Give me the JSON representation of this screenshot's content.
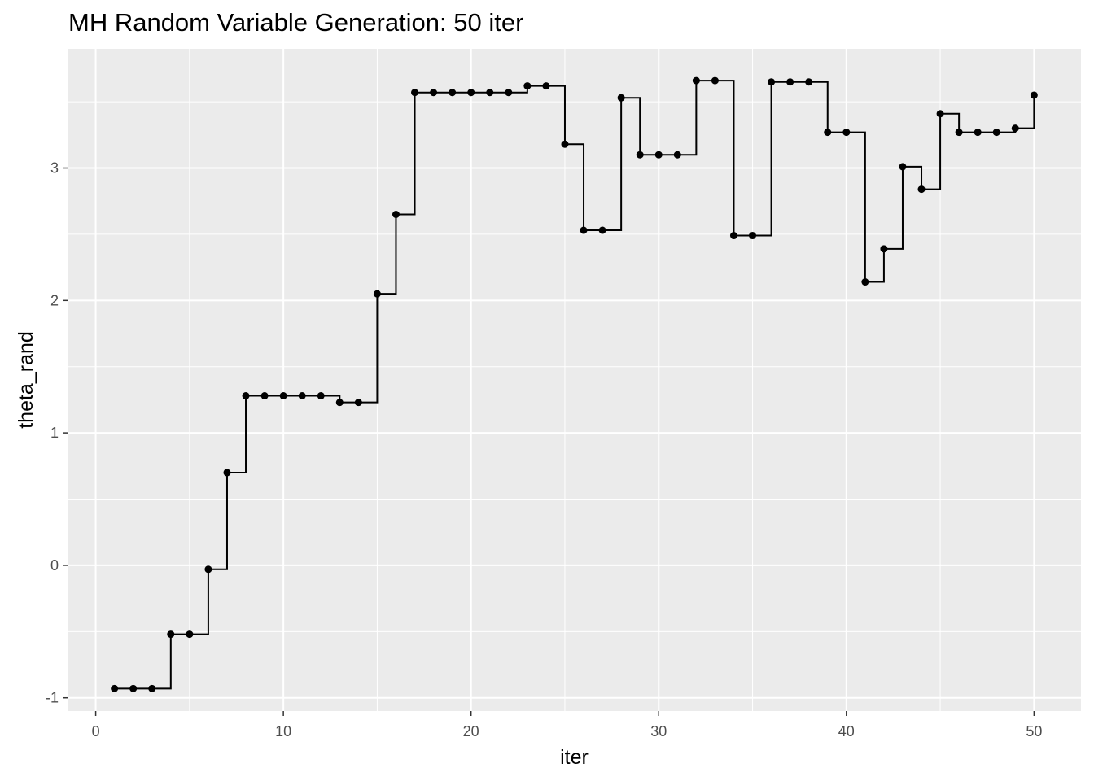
{
  "chart_data": {
    "type": "line",
    "style": "step",
    "title": "MH Random Variable Generation: 50 iter",
    "xlabel": "iter",
    "ylabel": "theta_rand",
    "xlim": [
      -1.5,
      52.5
    ],
    "ylim": [
      -1.1,
      3.9
    ],
    "x_ticks": [
      0,
      10,
      20,
      30,
      40,
      50
    ],
    "y_ticks": [
      -1,
      0,
      1,
      2,
      3
    ],
    "x_tick_labels": [
      "0",
      "10",
      "20",
      "30",
      "40",
      "50"
    ],
    "y_tick_labels": [
      "-1",
      "0",
      "1",
      "2",
      "3"
    ],
    "grid": true,
    "colors": {
      "panel": "#ebebeb",
      "grid": "#ffffff",
      "series": "#000000"
    },
    "series": [
      {
        "x": [
          1,
          2,
          3,
          4,
          5,
          6,
          7,
          8,
          9,
          10,
          11,
          12,
          13,
          14,
          15,
          16,
          17,
          18,
          19,
          20,
          21,
          22,
          23,
          24,
          25,
          26,
          27,
          28,
          29,
          30,
          31,
          32,
          33,
          34,
          35,
          36,
          37,
          38,
          39,
          40,
          41,
          42,
          43,
          44,
          45,
          46,
          47,
          48,
          49,
          50
        ],
        "values": [
          -0.93,
          -0.93,
          -0.93,
          -0.52,
          -0.52,
          -0.03,
          0.7,
          1.28,
          1.28,
          1.28,
          1.28,
          1.28,
          1.23,
          1.23,
          2.05,
          2.65,
          3.57,
          3.57,
          3.57,
          3.57,
          3.57,
          3.57,
          3.62,
          3.62,
          3.18,
          2.53,
          2.53,
          3.53,
          3.1,
          3.1,
          3.1,
          3.66,
          3.66,
          2.49,
          2.49,
          3.65,
          3.65,
          3.65,
          3.27,
          3.27,
          2.14,
          2.39,
          3.01,
          2.84,
          3.41,
          3.27,
          3.27,
          3.27,
          3.3,
          3.55
        ]
      }
    ]
  }
}
